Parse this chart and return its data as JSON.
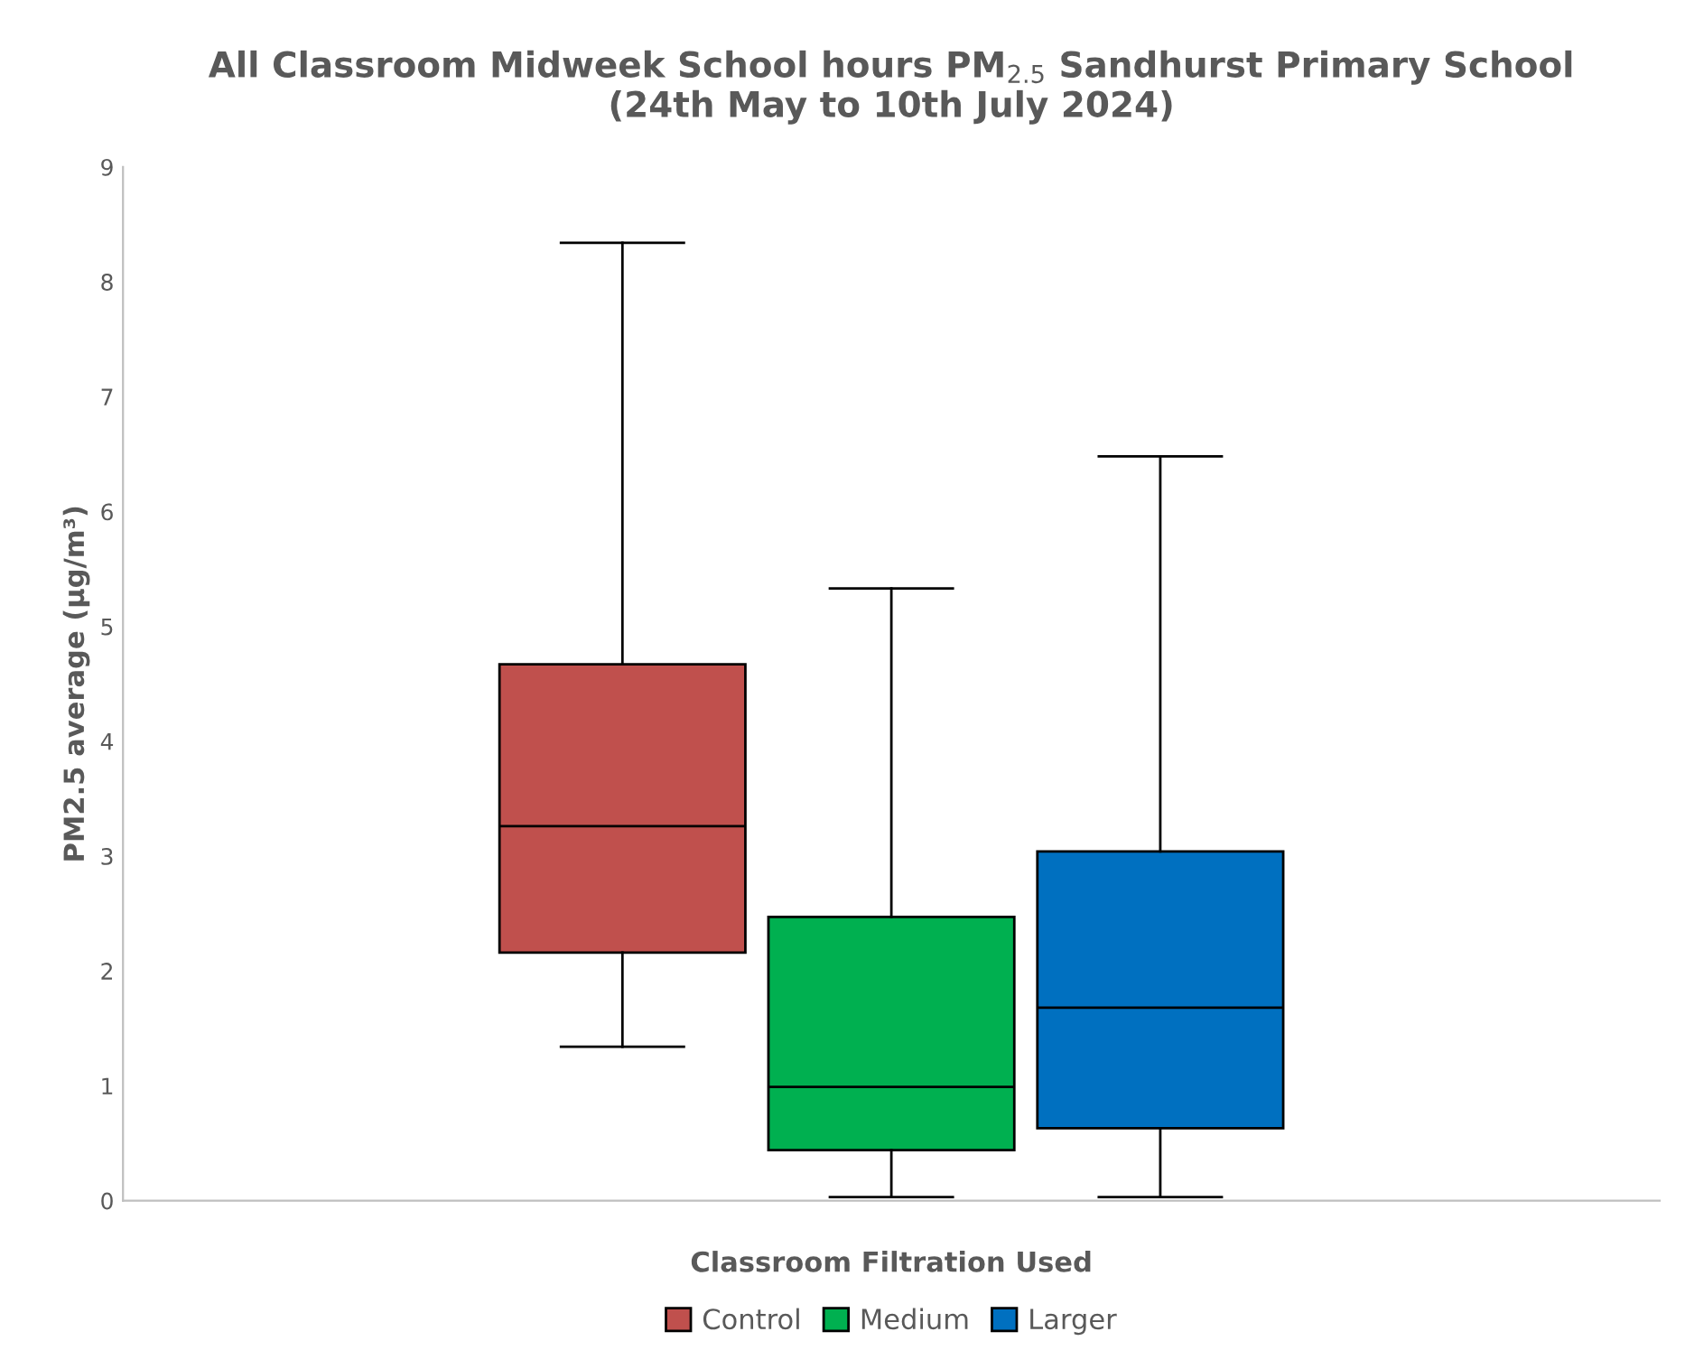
{
  "chart_data": {
    "type": "box",
    "title": "All Classroom Midweek School hours PM$_{2.5}$ Sandhurst Primary School\n(24th May to 10th July 2024)",
    "xlabel": "Classroom Filtration Used",
    "ylabel": "PM2.5 average (µg/m³)",
    "categories": [
      null
    ],
    "series": [
      {
        "name": "Control",
        "color": "#c0504d",
        "boxes": [
          {
            "low": 1.34,
            "q1": 2.16,
            "median": 3.26,
            "q3": 4.67,
            "high": 8.34
          }
        ]
      },
      {
        "name": "Medium",
        "color": "#00b050",
        "boxes": [
          {
            "low": 0.03,
            "q1": 0.44,
            "median": 0.99,
            "q3": 2.47,
            "high": 5.33
          }
        ]
      },
      {
        "name": "Larger",
        "color": "#0070c0",
        "boxes": [
          {
            "low": 0.03,
            "q1": 0.63,
            "median": 1.68,
            "q3": 3.04,
            "high": 6.48
          }
        ]
      }
    ],
    "ylim": [
      0,
      9
    ],
    "yticks": [
      0,
      1,
      2,
      3,
      4,
      5,
      6,
      7,
      8,
      9
    ],
    "grid": false,
    "legend": "bottom",
    "tick_labels": "y"
  }
}
